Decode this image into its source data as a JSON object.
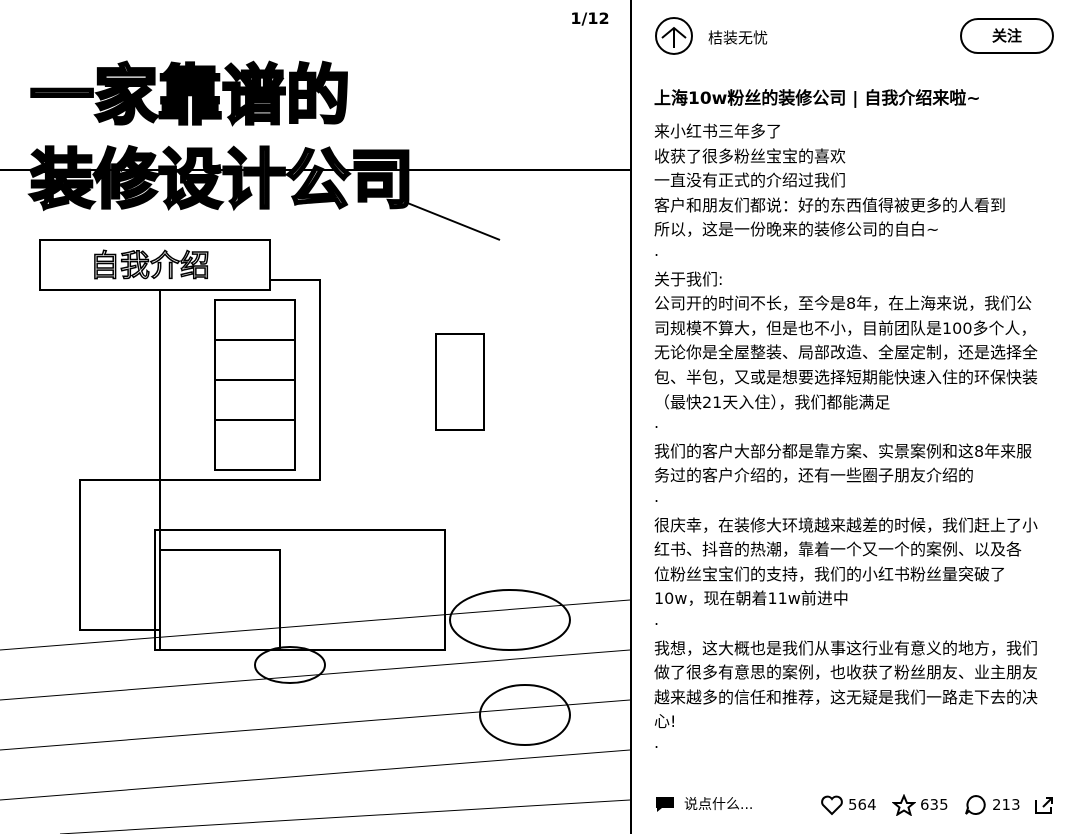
{
  "image": {
    "page_indicator": "1/12",
    "title_lines": [
      "一家靠谱的",
      "装修设计公司"
    ],
    "subtitle": "自我介绍"
  },
  "author": {
    "name": "桔装无忧",
    "follow": "关注"
  },
  "post": {
    "title": "上海10w粉丝的装修公司 | 自我介绍来啦~",
    "lines": [
      "来小红书三年多了",
      "收获了很多粉丝宝宝的喜欢",
      "一直没有正式的介绍过我们",
      "客户和朋友们都说：好的东西值得被更多的人看到",
      "所以，这是一份晚来的装修公司的自白~",
      ".",
      "关于我们:",
      "公司开的时间不长，至今是8年，在上海来说，我们公",
      "司规模不算大，但是也不小，目前团队是100多个人，",
      "无论你是全屋整装、局部改造、全屋定制，还是选择全",
      "包、半包，又或是想要选择短期能快速入住的环保快装",
      "（最快21天入住），我们都能满足",
      ".",
      "我们的客户大部分都是靠方案、实景案例和这8年来服",
      "务过的客户介绍的，还有一些圈子朋友介绍的",
      ".",
      "很庆幸，在装修大环境越来越差的时候，我们赶上了小",
      "红书、抖音的热潮，靠着一个又一个的案例、以及各",
      "位粉丝宝宝们的支持，我们的小红书粉丝量突破了",
      "10w，现在朝着11w前进中",
      ".",
      "我想，这大概也是我们从事这行业有意义的地方，我们",
      "做了很多有意思的案例，也收获了粉丝朋友、业主朋友",
      "越来越多的信任和推荐，这无疑是我们一路走下去的决",
      "心!",
      "."
    ]
  },
  "bottom_bar": {
    "comment_placeholder": "说点什么...",
    "likes": 564,
    "collects": 635,
    "comments": 213
  }
}
